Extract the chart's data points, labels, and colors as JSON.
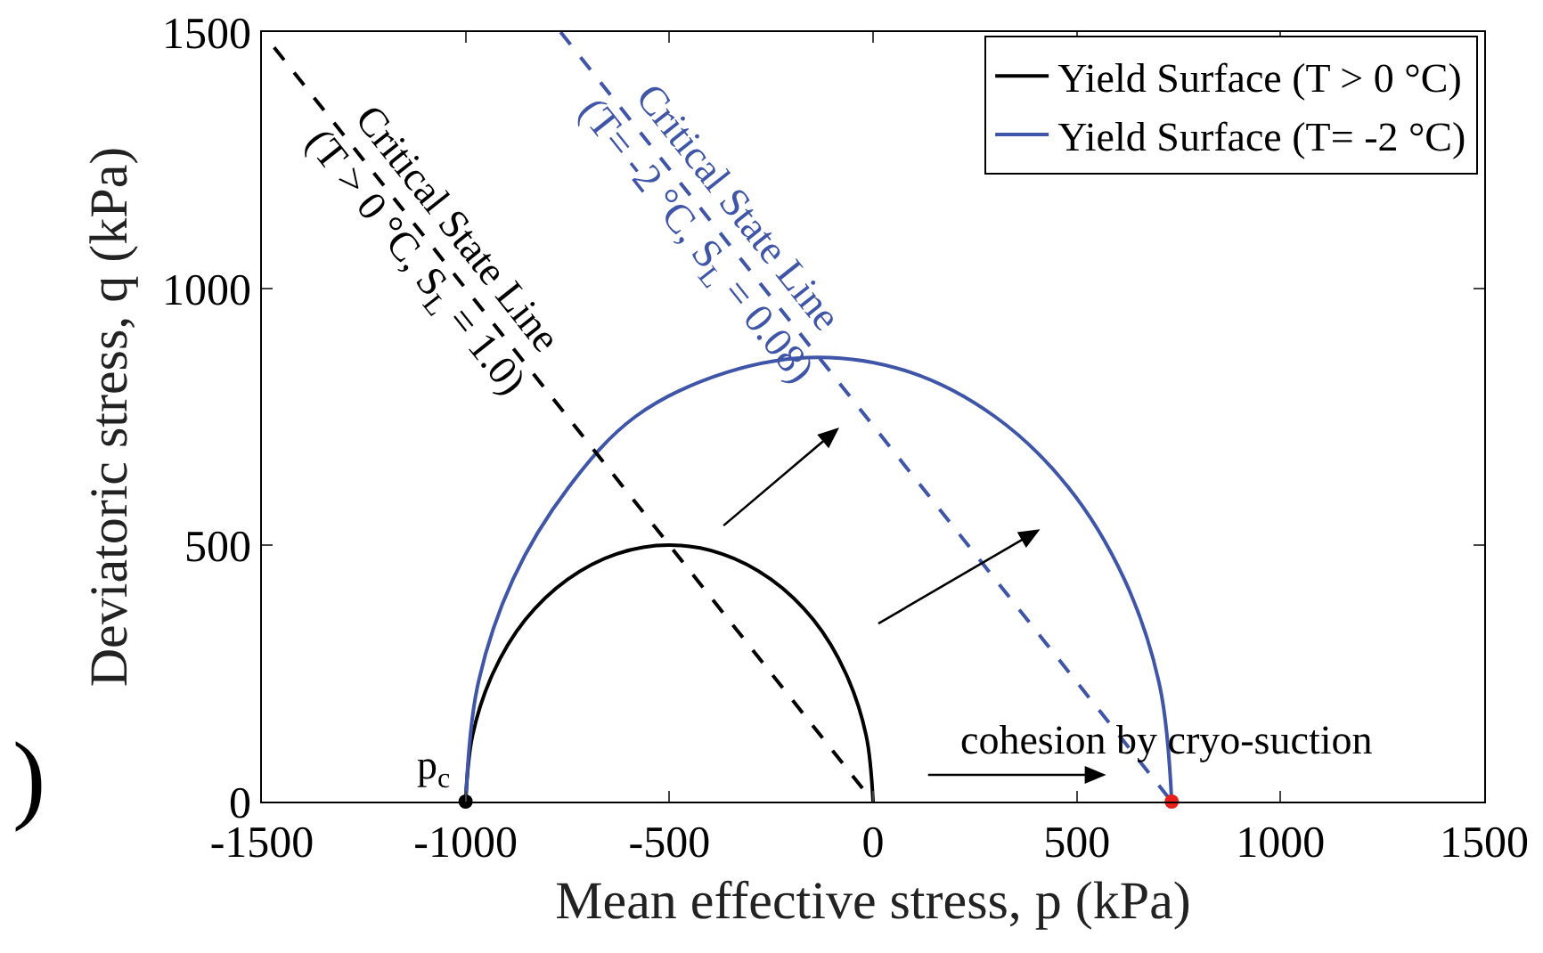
{
  "chart_data": {
    "type": "line",
    "xlabel": "Mean effective stress, p (kPa)",
    "ylabel": "Deviatoric stress, q (kPa)",
    "xlim": [
      -1500,
      1500
    ],
    "xticks": [
      -1500,
      -1000,
      -500,
      0,
      500,
      1000,
      1500
    ],
    "ylim": [
      0,
      1500
    ],
    "yticks": [
      0,
      500,
      1000,
      1500
    ],
    "grid": false,
    "legend": "top right",
    "series": [
      {
        "name": "Yield Surface (T > 0 °C)",
        "color": "#000000",
        "line_style": "solid",
        "x": [
          0,
          -17,
          -67,
          -146,
          -250,
          -371,
          -500,
          -629,
          -750,
          -854,
          -933,
          -983,
          -1000
        ],
        "values": [
          0,
          129,
          250,
          354,
          433,
          483,
          500,
          483,
          433,
          354,
          250,
          129,
          0
        ]
      },
      {
        "name": "Yield Surface (T= -2 °C)",
        "color": "#3f55a8",
        "line_style": "solid",
        "x": [
          733,
          704,
          617,
          479,
          300,
          91,
          -134,
          -358,
          -584,
          -747,
          -884,
          -971,
          -1000
        ],
        "values": [
          0,
          224,
          433,
          613,
          750,
          837,
          866,
          837,
          750,
          613,
          433,
          224,
          0
        ]
      },
      {
        "color": "#000000",
        "line_style": "dashed",
        "x": [
          -1470,
          0
        ],
        "values": [
          1470,
          0
        ]
      },
      {
        "color": "#3f55a8",
        "line_style": "dashed",
        "x": [
          -767,
          733
        ],
        "values": [
          1500,
          0
        ]
      },
      {
        "color": "#000000",
        "type": "scatter",
        "marker": "circle",
        "x": [
          -1000
        ],
        "values": [
          0
        ]
      },
      {
        "color": "#e8211c",
        "type": "scatter",
        "marker": "circle",
        "x": [
          733
        ],
        "values": [
          0
        ]
      }
    ],
    "annotations": [
      "Critical State Line\n(T > 0 °C, S$_{L}$ = 1.0)",
      {
        "text": "Critical State Line\n(T= -2 °C, S$_{L}$ = 0.08)",
        "x": -390,
        "y": 1123
      },
      {
        "text": "p$_{c}$",
        "x": -1000,
        "y": 0
      },
      "cohesion by cryo-suction",
      ")"
    ]
  }
}
